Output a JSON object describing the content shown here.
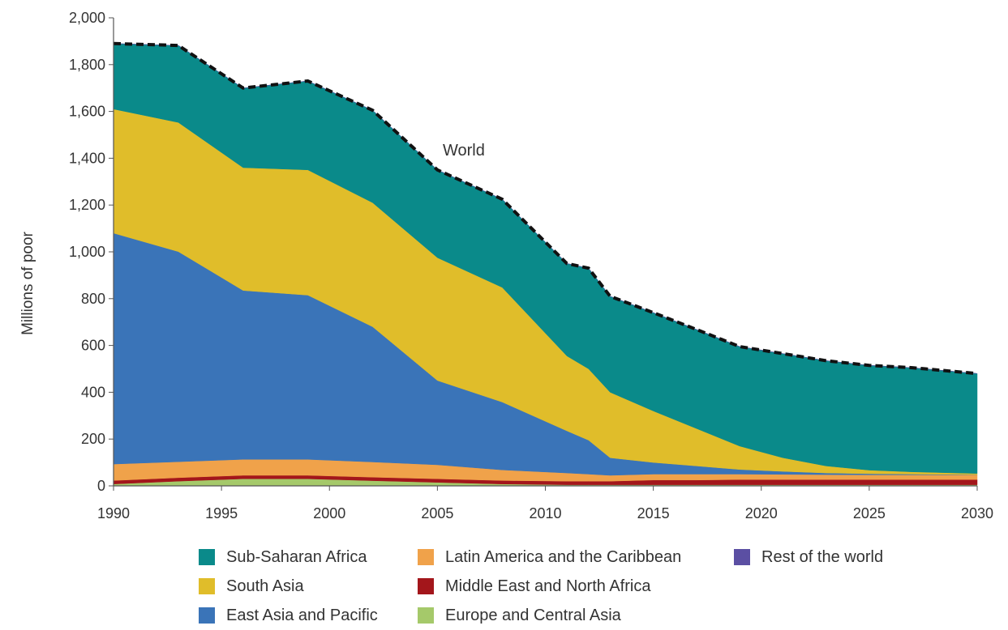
{
  "chart_data": {
    "type": "area",
    "stacked": true,
    "title": "",
    "xlabel": "",
    "ylabel": "Millions of poor",
    "xlim": [
      1990,
      2030
    ],
    "ylim": [
      0,
      2000
    ],
    "x_ticks": [
      "1990",
      "1995",
      "2000",
      "2005",
      "2010",
      "2015",
      "2020",
      "2025",
      "2030"
    ],
    "y_ticks": [
      "0",
      "200",
      "400",
      "600",
      "800",
      "1,000",
      "1,200",
      "1,400",
      "1,600",
      "1,800",
      "2,000"
    ],
    "grid": false,
    "legend_position": "bottom",
    "annotations": [
      {
        "text": "World",
        "x": 2005.3,
        "y": 1420
      }
    ],
    "x": [
      1990,
      1993,
      1996,
      1999,
      2002,
      2005,
      2008,
      2011,
      2012,
      2013,
      2015,
      2017,
      2019,
      2021,
      2023,
      2025,
      2027,
      2030
    ],
    "series": [
      {
        "name": "Europe and Central Asia",
        "color": "#a5c96a",
        "values": [
          8,
          20,
          30,
          30,
          22,
          15,
          8,
          5,
          5,
          5,
          5,
          5,
          5,
          5,
          5,
          5,
          5,
          5
        ]
      },
      {
        "name": "Middle East and North Africa",
        "color": "#a3161b",
        "values": [
          15,
          15,
          15,
          15,
          15,
          15,
          15,
          15,
          15,
          15,
          20,
          20,
          22,
          22,
          22,
          22,
          22,
          22
        ]
      },
      {
        "name": "Latin America and the Caribbean",
        "color": "#f0a24a",
        "values": [
          70,
          68,
          68,
          68,
          65,
          60,
          45,
          35,
          30,
          25,
          25,
          25,
          23,
          22,
          21,
          20,
          20,
          20
        ]
      },
      {
        "name": "East Asia and Pacific",
        "color": "#3a74b8",
        "values": [
          987,
          898,
          722,
          702,
          578,
          360,
          290,
          180,
          145,
          75,
          50,
          35,
          20,
          13,
          7,
          5,
          3,
          1
        ]
      },
      {
        "name": "South Asia",
        "color": "#e0bd2a",
        "values": [
          530,
          552,
          525,
          535,
          530,
          525,
          490,
          320,
          305,
          280,
          220,
          160,
          100,
          58,
          30,
          15,
          10,
          5
        ]
      },
      {
        "name": "Sub-Saharan Africa",
        "color": "#0a8a8a",
        "values": [
          280,
          329,
          340,
          380,
          395,
          375,
          377,
          395,
          430,
          410,
          420,
          423,
          425,
          445,
          450,
          448,
          445,
          427
        ]
      },
      {
        "name": "Rest of the world",
        "color": "#5b4fa3",
        "values": [
          0,
          0,
          0,
          0,
          0,
          0,
          0,
          0,
          0,
          0,
          0,
          0,
          0,
          0,
          0,
          0,
          0,
          0
        ]
      }
    ],
    "world_line": {
      "name": "World",
      "style": "dashed",
      "values": [
        1890,
        1882,
        1700,
        1730,
        1605,
        1350,
        1225,
        950,
        930,
        810,
        740,
        668,
        595,
        565,
        535,
        515,
        505,
        480
      ]
    }
  },
  "legend": {
    "items": [
      {
        "label": "Sub-Saharan Africa",
        "color": "#0a8a8a"
      },
      {
        "label": "Latin America and the Caribbean",
        "color": "#f0a24a"
      },
      {
        "label": "Rest of the world",
        "color": "#5b4fa3"
      },
      {
        "label": "South Asia",
        "color": "#e0bd2a"
      },
      {
        "label": "Middle East and North Africa",
        "color": "#a3161b"
      },
      {
        "label": "",
        "color": ""
      },
      {
        "label": "East Asia and Pacific",
        "color": "#3a74b8"
      },
      {
        "label": "Europe and Central Asia",
        "color": "#a5c96a"
      }
    ]
  }
}
